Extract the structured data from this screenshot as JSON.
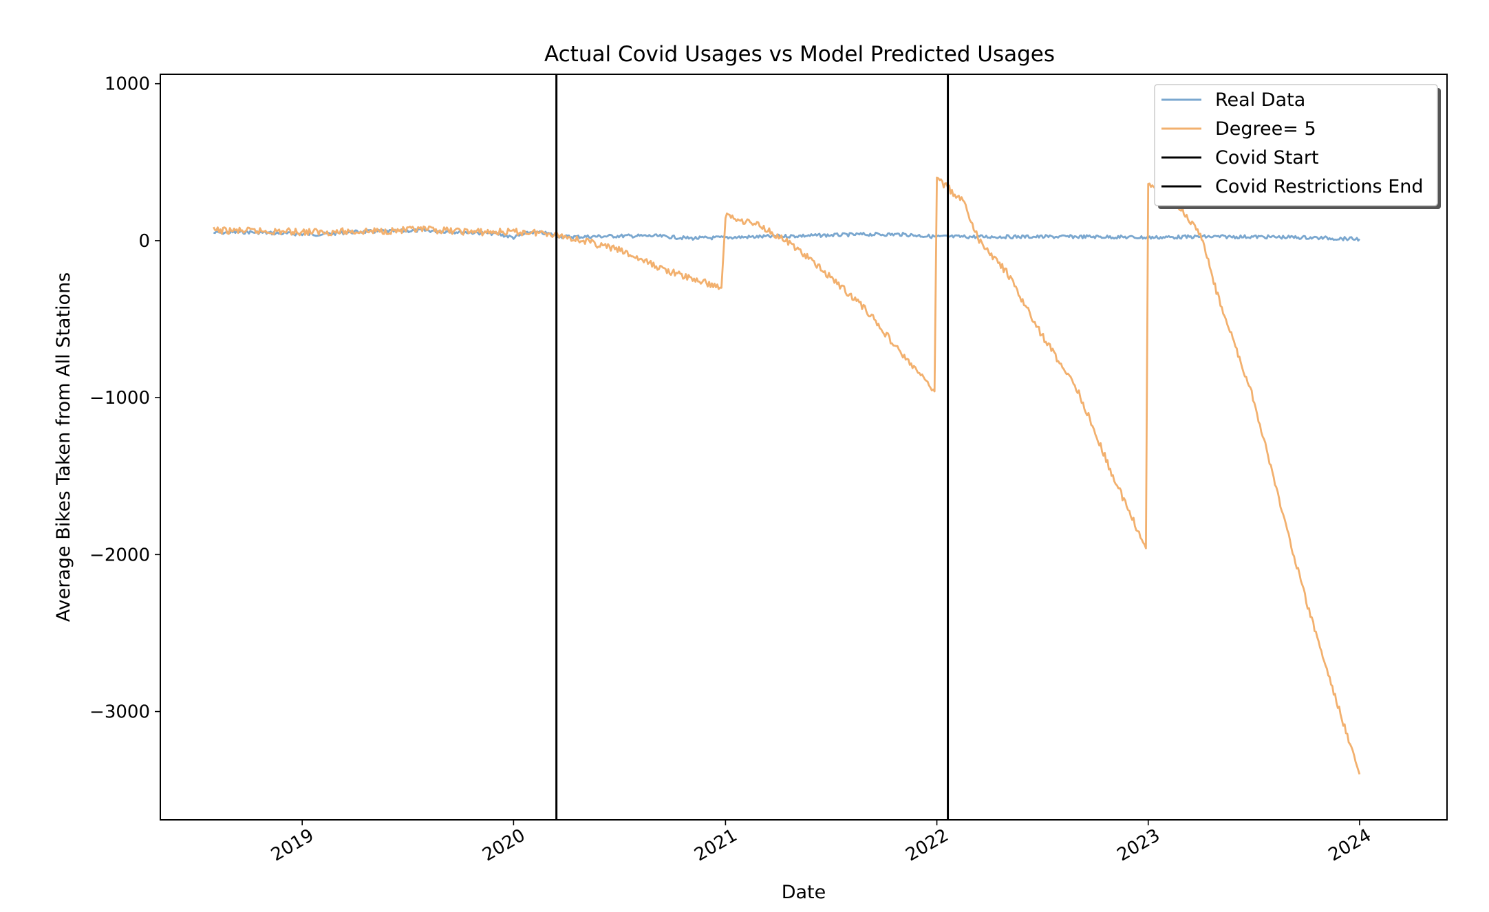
{
  "chart_data": {
    "type": "line",
    "title": "Actual Covid Usages vs Model Predicted Usages",
    "xlabel": "Date",
    "ylabel": "Average Bikes Taken from All Stations",
    "x_ticks": [
      "2019",
      "2020",
      "2021",
      "2022",
      "2023",
      "2024"
    ],
    "y_ticks": [
      1000,
      0,
      -1000,
      -2000,
      -3000
    ],
    "y_tick_labels": [
      "1000",
      "0",
      "−1000",
      "−2000",
      "−3000"
    ],
    "xlim": [
      "2018-05-01",
      "2024-05-31"
    ],
    "ylim": [
      -3690,
      1060
    ],
    "grid": false,
    "legend_position": "top-right",
    "series": [
      {
        "name": "Real Data",
        "color": "#7aa7cf",
        "points": [
          [
            "2018-08-01",
            50
          ],
          [
            "2018-10-01",
            55
          ],
          [
            "2018-12-01",
            45
          ],
          [
            "2019-02-01",
            40
          ],
          [
            "2019-04-01",
            55
          ],
          [
            "2019-06-01",
            60
          ],
          [
            "2019-08-01",
            65
          ],
          [
            "2019-10-01",
            55
          ],
          [
            "2019-12-01",
            45
          ],
          [
            "2020-01-01",
            20
          ],
          [
            "2020-02-01",
            55
          ],
          [
            "2020-03-01",
            45
          ],
          [
            "2020-03-25",
            25
          ],
          [
            "2020-05-01",
            25
          ],
          [
            "2020-07-01",
            30
          ],
          [
            "2020-09-01",
            30
          ],
          [
            "2020-11-01",
            15
          ],
          [
            "2021-01-01",
            20
          ],
          [
            "2021-03-01",
            25
          ],
          [
            "2021-05-01",
            30
          ],
          [
            "2021-07-01",
            35
          ],
          [
            "2021-09-01",
            40
          ],
          [
            "2021-11-01",
            40
          ],
          [
            "2022-01-01",
            25
          ],
          [
            "2022-04-01",
            25
          ],
          [
            "2022-07-01",
            25
          ],
          [
            "2022-10-01",
            25
          ],
          [
            "2023-01-01",
            20
          ],
          [
            "2023-04-01",
            25
          ],
          [
            "2023-07-01",
            25
          ],
          [
            "2023-10-01",
            20
          ],
          [
            "2024-01-01",
            10
          ]
        ]
      },
      {
        "name": "Degree= 5",
        "color": "#f2b06e",
        "points": [
          [
            "2018-08-01",
            65
          ],
          [
            "2018-11-01",
            60
          ],
          [
            "2019-02-01",
            55
          ],
          [
            "2019-05-01",
            60
          ],
          [
            "2019-08-01",
            70
          ],
          [
            "2019-11-01",
            55
          ],
          [
            "2020-01-01",
            55
          ],
          [
            "2020-03-01",
            50
          ],
          [
            "2020-05-01",
            0
          ],
          [
            "2020-07-01",
            -60
          ],
          [
            "2020-09-01",
            -160
          ],
          [
            "2020-10-15",
            -220
          ],
          [
            "2020-12-25",
            -300
          ],
          [
            "2021-01-01",
            160
          ],
          [
            "2021-03-01",
            100
          ],
          [
            "2021-05-01",
            -40
          ],
          [
            "2021-07-01",
            -230
          ],
          [
            "2021-09-01",
            -440
          ],
          [
            "2021-11-01",
            -720
          ],
          [
            "2021-12-28",
            -960
          ],
          [
            "2022-01-01",
            400
          ],
          [
            "2022-02-15",
            250
          ],
          [
            "2022-03-15",
            0
          ],
          [
            "2022-05-01",
            -200
          ],
          [
            "2022-07-01",
            -600
          ],
          [
            "2022-09-01",
            -950
          ],
          [
            "2022-11-01",
            -1500
          ],
          [
            "2022-12-28",
            -1960
          ],
          [
            "2023-01-01",
            350
          ],
          [
            "2023-02-15",
            250
          ],
          [
            "2023-04-01",
            50
          ],
          [
            "2023-05-01",
            -350
          ],
          [
            "2023-07-01",
            -1000
          ],
          [
            "2023-08-15",
            -1650
          ],
          [
            "2023-10-01",
            -2300
          ],
          [
            "2023-11-15",
            -2850
          ],
          [
            "2024-01-01",
            -3400
          ]
        ]
      }
    ],
    "vlines": [
      {
        "name": "Covid Start",
        "color": "#000000",
        "x": "2020-03-15"
      },
      {
        "name": "Covid Restrictions End",
        "color": "#000000",
        "x": "2022-01-20"
      }
    ]
  }
}
